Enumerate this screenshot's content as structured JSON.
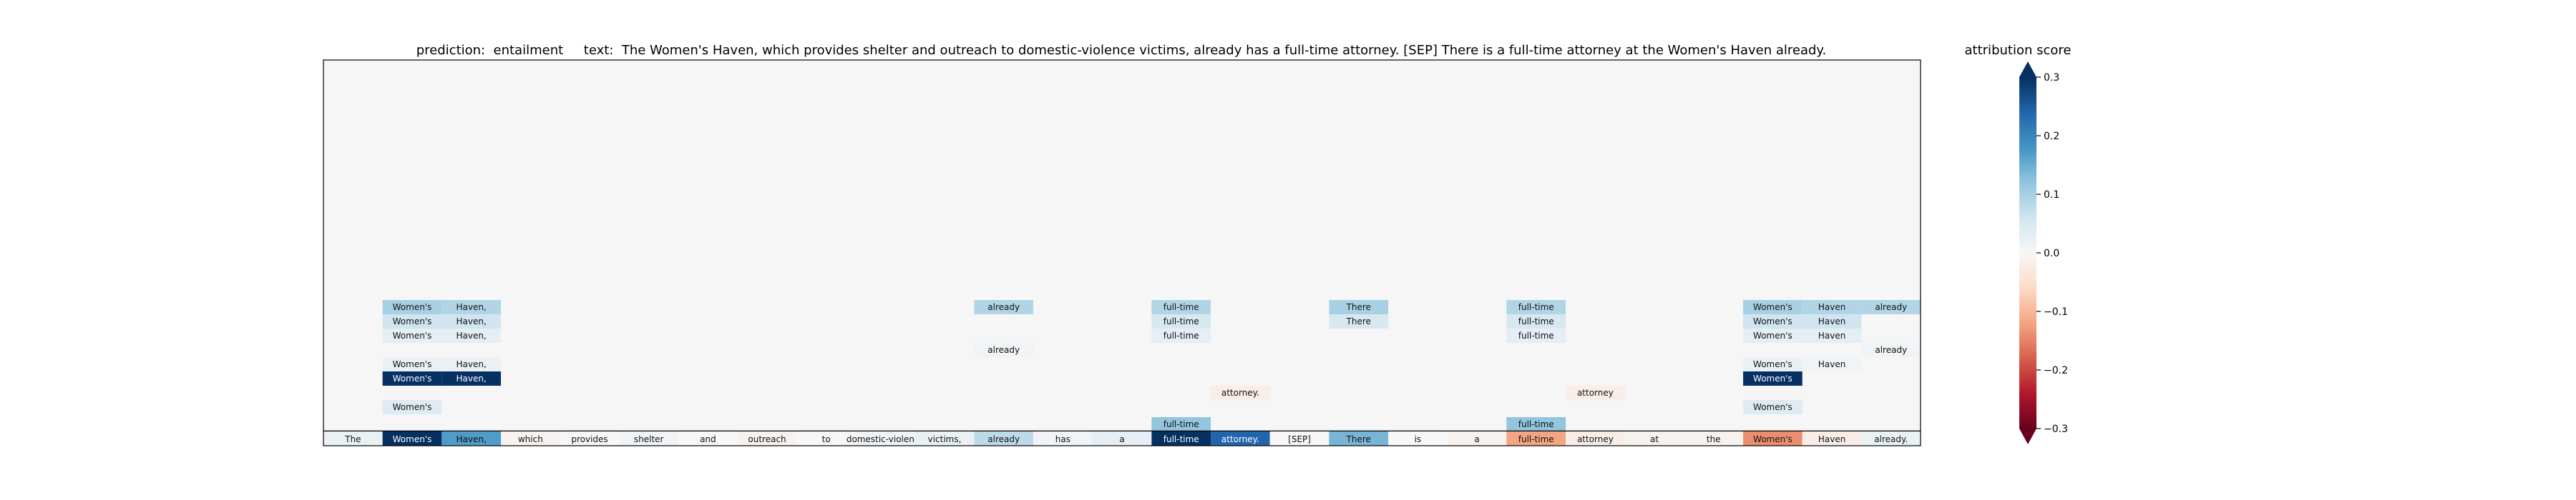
{
  "title": "prediction:  entailment     text:  The Women's Haven, which provides shelter and outreach to domestic-violence victims, already has a full-time attorney. [SEP] There is a full-time attorney at the Women's Haven already.",
  "colorbar": {
    "title": "attribution score",
    "ticks": [
      "0.3",
      "0.2",
      "0.1",
      "0.0",
      "−0.1",
      "−0.2",
      "−0.3"
    ],
    "tick_values": [
      0.3,
      0.2,
      0.1,
      0.0,
      -0.1,
      -0.2,
      -0.3
    ],
    "range": [
      -0.3,
      0.3
    ],
    "colormap": "RdBu"
  },
  "chart_data": {
    "type": "heatmap",
    "title": "prediction:  entailment     text:  The Women's Haven, which provides shelter and outreach to domestic-violence victims, already has a full-time attorney. [SEP] There is a full-time attorney at the Women's Haven already.",
    "tokens": [
      "The",
      "Women's",
      "Haven,",
      "which",
      "provides",
      "shelter",
      "and",
      "outreach",
      "to",
      "domestic-violence",
      "victims,",
      "already",
      "has",
      "a",
      "full-time",
      "attorney.",
      "[SEP]",
      "There",
      "is",
      "a",
      "full-time",
      "attorney",
      "at",
      "the",
      "Women's",
      "Haven",
      "already."
    ],
    "token_scores": [
      0.02,
      0.3,
      0.17,
      -0.01,
      0.0,
      0.01,
      0.0,
      -0.01,
      0.0,
      0.01,
      0.02,
      0.08,
      0.01,
      0.03,
      0.3,
      0.24,
      0.0,
      0.14,
      0.0,
      -0.01,
      -0.12,
      -0.02,
      -0.01,
      -0.01,
      -0.14,
      -0.02,
      0.02
    ],
    "rows": [
      [
        {
          "col": 1,
          "text": "Women's",
          "score": 0.1
        },
        {
          "col": 2,
          "text": "Haven,",
          "score": 0.09
        },
        {
          "col": 11,
          "text": "already",
          "score": 0.09
        },
        {
          "col": 14,
          "text": "full-time",
          "score": 0.09
        },
        {
          "col": 17,
          "text": "There",
          "score": 0.1
        },
        {
          "col": 20,
          "text": "full-time",
          "score": 0.09
        },
        {
          "col": 24,
          "text": "Women's",
          "score": 0.1
        },
        {
          "col": 25,
          "text": "Haven",
          "score": 0.09
        },
        {
          "col": 26,
          "text": "already",
          "score": 0.09
        }
      ],
      [
        {
          "col": 1,
          "text": "Women's",
          "score": 0.06
        },
        {
          "col": 2,
          "text": "Haven,",
          "score": 0.06
        },
        {
          "col": 14,
          "text": "full-time",
          "score": 0.05
        },
        {
          "col": 17,
          "text": "There",
          "score": 0.05
        },
        {
          "col": 20,
          "text": "full-time",
          "score": 0.05
        },
        {
          "col": 24,
          "text": "Women's",
          "score": 0.06
        },
        {
          "col": 25,
          "text": "Haven",
          "score": 0.06
        }
      ],
      [
        {
          "col": 1,
          "text": "Women's",
          "score": 0.03
        },
        {
          "col": 2,
          "text": "Haven,",
          "score": 0.03
        },
        {
          "col": 14,
          "text": "full-time",
          "score": 0.03
        },
        {
          "col": 20,
          "text": "full-time",
          "score": 0.03
        },
        {
          "col": 24,
          "text": "Women's",
          "score": 0.03
        },
        {
          "col": 25,
          "text": "Haven",
          "score": 0.03
        }
      ],
      [
        {
          "col": 11,
          "text": "already",
          "score": 0.01
        },
        {
          "col": 26,
          "text": "already",
          "score": 0.01
        }
      ],
      [
        {
          "col": 1,
          "text": "Women's",
          "score": 0.02
        },
        {
          "col": 2,
          "text": "Haven,",
          "score": 0.02
        },
        {
          "col": 24,
          "text": "Women's",
          "score": 0.02
        },
        {
          "col": 25,
          "text": "Haven",
          "score": 0.01
        }
      ],
      [
        {
          "col": 1,
          "text": "Women's",
          "score": 0.3
        },
        {
          "col": 2,
          "text": "Haven,",
          "score": 0.3
        },
        {
          "col": 24,
          "text": "Women's",
          "score": 0.3
        }
      ],
      [
        {
          "col": 15,
          "text": "attorney.",
          "score": -0.02
        },
        {
          "col": 21,
          "text": "attorney",
          "score": -0.02
        }
      ],
      [
        {
          "col": 1,
          "text": "Women's",
          "score": 0.04
        },
        {
          "col": 24,
          "text": "Women's",
          "score": 0.04
        }
      ],
      [
        {
          "col": 14,
          "text": "full-time",
          "score": 0.12
        },
        {
          "col": 20,
          "text": "full-time",
          "score": 0.12
        }
      ]
    ]
  }
}
